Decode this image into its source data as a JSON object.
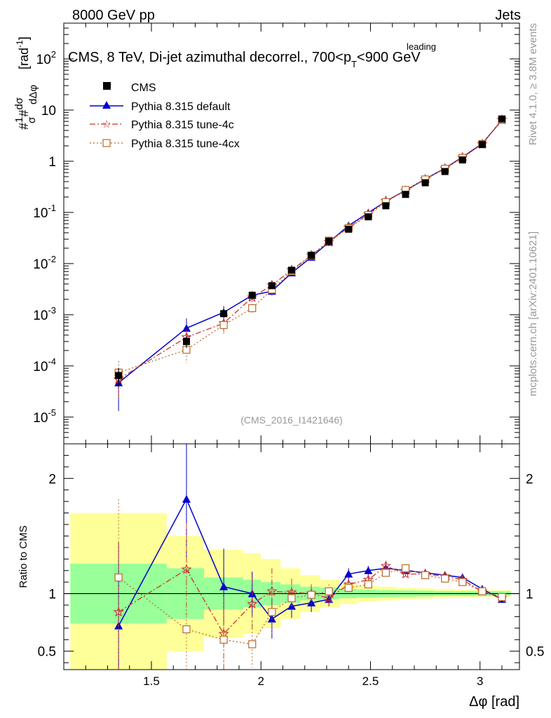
{
  "header": {
    "left": "8000 GeV pp",
    "right": "Jets"
  },
  "side_labels": {
    "rivet": "Rivet 4.1.0, ≥ 3.8M events",
    "mcplots": "mcplots.cern.ch [arXiv:2401.10621]"
  },
  "chart_data": {
    "type": "line",
    "title": "CMS, 8 TeV, Di-jet azimuthal decorrel., 700<p_T^leading<900 GeV",
    "title_main": "CMS, 8 TeV, Di-jet azimuthal decorrel., 700<p",
    "title_sup": "leading",
    "title_sub": "T",
    "title_tail": "<900 GeV",
    "watermark": "(CMS_2016_I1421646)",
    "xlabel": "Δφ [rad]",
    "ylabel": "#1/σ #dσ/dΔφ [rad⁻¹]",
    "ylabel_parts": {
      "hash1": "#",
      "one": "1",
      "sigma": "σ",
      "hash2": "#",
      "dsigma": "dσ",
      "dphi": "dΔφ",
      "unit": "[rad",
      "unit_exp": "-1",
      "unit_close": "]"
    },
    "ratio_ylabel": "Ratio to CMS",
    "xlim": [
      1.1,
      3.18
    ],
    "ylim": [
      3e-06,
      500
    ],
    "ratio_ylim": [
      0.34,
      2.3
    ],
    "x_ticks": [
      1.5,
      2,
      2.5,
      3
    ],
    "x_tick_labels": [
      "1.5",
      "2",
      "2.5",
      "3"
    ],
    "y_ticks": [
      1e-05,
      0.0001,
      0.001,
      0.01,
      0.1,
      1,
      10,
      100
    ],
    "y_tick_labels": [
      {
        "base": "10",
        "exp": "-5"
      },
      {
        "base": "10",
        "exp": "-4"
      },
      {
        "base": "10",
        "exp": "-3"
      },
      {
        "base": "10",
        "exp": "-2"
      },
      {
        "base": "10",
        "exp": "-1"
      },
      {
        "base": "1",
        "exp": ""
      },
      {
        "base": "10",
        "exp": ""
      },
      {
        "base": "10",
        "exp": "2"
      }
    ],
    "ratio_ticks": [
      0.5,
      1,
      2
    ],
    "ratio_tick_labels": [
      "0.5",
      "1",
      "2"
    ],
    "x": [
      1.35,
      1.66,
      1.83,
      1.96,
      2.05,
      2.14,
      2.23,
      2.31,
      2.4,
      2.49,
      2.57,
      2.66,
      2.75,
      2.84,
      2.92,
      3.01,
      3.1
    ],
    "bin_edges": [
      1.13,
      1.57,
      1.74,
      1.92,
      2.0,
      2.09,
      2.18,
      2.27,
      2.36,
      2.44,
      2.53,
      2.62,
      2.71,
      2.79,
      2.88,
      2.97,
      3.05,
      3.14
    ],
    "cms": {
      "name": "CMS",
      "values": [
        6.5e-05,
        0.0003,
        0.00105,
        0.0024,
        0.0037,
        0.0074,
        0.0145,
        0.0275,
        0.047,
        0.082,
        0.135,
        0.225,
        0.38,
        0.63,
        1.06,
        2.12,
        6.7
      ],
      "err": [
        0.4,
        0.25,
        0.15,
        0.12,
        0.1,
        0.08,
        0.06,
        0.05,
        0.04,
        0.04,
        0.03,
        0.03,
        0.03,
        0.02,
        0.02,
        0.02,
        0.02
      ]
    },
    "ratio_band_stat": [
      0.26,
      0.22,
      0.14,
      0.12,
      0.1,
      0.08,
      0.06,
      0.05,
      0.04,
      0.035,
      0.03,
      0.028,
      0.025,
      0.02,
      0.02,
      0.02,
      0.02
    ],
    "ratio_band_total_up": [
      0.7,
      0.5,
      0.38,
      0.35,
      0.3,
      0.22,
      0.16,
      0.12,
      0.09,
      0.07,
      0.06,
      0.05,
      0.045,
      0.04,
      0.035,
      0.03,
      0.03
    ],
    "ratio_band_total_dn": [
      0.66,
      0.5,
      0.38,
      0.35,
      0.3,
      0.22,
      0.16,
      0.12,
      0.09,
      0.07,
      0.06,
      0.05,
      0.045,
      0.04,
      0.035,
      0.03,
      0.03
    ],
    "series": [
      {
        "name": "Pythia 8.315 default",
        "color": "#0000cc",
        "marker": "triangle",
        "dash": "",
        "ratio": [
          0.72,
          1.82,
          1.06,
          1.0,
          0.78,
          0.89,
          0.92,
          0.95,
          1.17,
          1.2,
          1.22,
          1.2,
          1.18,
          1.16,
          1.14,
          1.04,
          0.95
        ],
        "ratio_err": [
          0.72,
          0.55,
          0.33,
          0.19,
          0.17,
          0.1,
          0.08,
          0.06,
          0.05,
          0.04,
          0.03,
          0.03,
          0.03,
          0.02,
          0.02,
          0.02,
          0.02
        ]
      },
      {
        "name": "Pythia 8.315 tune-4c",
        "color": "#cc3333",
        "marker": "star",
        "dash": "8,3,2,3",
        "ratio": [
          0.84,
          1.21,
          0.65,
          0.91,
          1.02,
          1.01,
          1.0,
          0.96,
          1.08,
          1.12,
          1.24,
          1.17,
          1.17,
          1.15,
          1.12,
          1.02,
          0.96
        ],
        "ratio_err": [
          0.61,
          0.4,
          0.32,
          0.22,
          0.2,
          0.12,
          0.08,
          0.07,
          0.05,
          0.04,
          0.03,
          0.03,
          0.03,
          0.02,
          0.02,
          0.02,
          0.02
        ]
      },
      {
        "name": "Pythia 8.315 tune-4cx",
        "color": "#b86a2a",
        "marker": "square-open",
        "dash": "2,3",
        "ratio": [
          1.14,
          0.69,
          0.6,
          0.56,
          0.84,
          0.96,
          0.99,
          1.02,
          1.05,
          1.08,
          1.18,
          1.22,
          1.16,
          1.13,
          1.1,
          1.02,
          0.97
        ],
        "ratio_err": [
          0.68,
          0.45,
          0.34,
          0.2,
          0.19,
          0.12,
          0.08,
          0.06,
          0.05,
          0.04,
          0.03,
          0.03,
          0.03,
          0.02,
          0.02,
          0.02,
          0.02
        ]
      }
    ]
  }
}
